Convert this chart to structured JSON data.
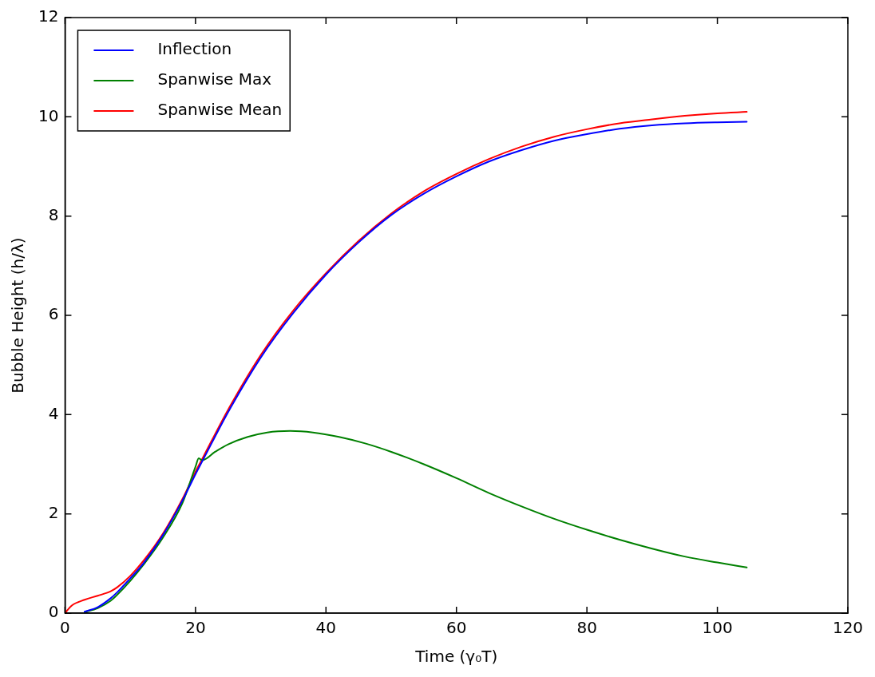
{
  "chart_data": {
    "type": "line",
    "xlabel": "Time (γ₀T)",
    "ylabel": "Bubble Height (h/λ)",
    "xlim": [
      0,
      120
    ],
    "ylim": [
      0,
      12
    ],
    "xticks": [
      0,
      20,
      40,
      60,
      80,
      100,
      120
    ],
    "yticks": [
      0,
      2,
      4,
      6,
      8,
      10,
      12
    ],
    "grid": false,
    "legend": "top left",
    "marker": "none",
    "line_style": "solid",
    "series": [
      {
        "name": "Inflection",
        "color": "#0000ff",
        "x": [
          3,
          5,
          7,
          8,
          10,
          12,
          15,
          18,
          20,
          21,
          25,
          30,
          35,
          40,
          45,
          50,
          55,
          60,
          65,
          70,
          75,
          80,
          85,
          90,
          95,
          100,
          104.5
        ],
        "values": [
          0.03,
          0.12,
          0.3,
          0.42,
          0.7,
          1.0,
          1.57,
          2.27,
          2.8,
          3.05,
          4.05,
          5.15,
          6.05,
          6.82,
          7.47,
          8.02,
          8.45,
          8.8,
          9.1,
          9.33,
          9.52,
          9.65,
          9.76,
          9.83,
          9.87,
          9.89,
          9.9
        ]
      },
      {
        "name": "Spanwise Max",
        "color": "#008000",
        "x": [
          3,
          5,
          7,
          8,
          10,
          12,
          15,
          18,
          20,
          20.5,
          21,
          23,
          25,
          28,
          31,
          34.5,
          38,
          42,
          46,
          50,
          55,
          60,
          65,
          70,
          75,
          80,
          85,
          90,
          95,
          100,
          104.5
        ],
        "values": [
          0.02,
          0.1,
          0.25,
          0.37,
          0.65,
          0.97,
          1.52,
          2.22,
          2.95,
          3.12,
          3.08,
          3.25,
          3.4,
          3.55,
          3.64,
          3.67,
          3.64,
          3.55,
          3.42,
          3.25,
          3.0,
          2.72,
          2.42,
          2.15,
          1.9,
          1.68,
          1.48,
          1.3,
          1.14,
          1.02,
          0.92
        ]
      },
      {
        "name": "Spanwise Mean",
        "color": "#ff0000",
        "x": [
          0,
          1,
          3,
          5,
          7,
          8,
          10,
          12,
          15,
          18,
          20,
          21,
          25,
          30,
          35,
          40,
          45,
          50,
          55,
          60,
          65,
          70,
          75,
          80,
          85,
          90,
          95,
          100,
          104.5
        ],
        "values": [
          0,
          0.15,
          0.27,
          0.35,
          0.44,
          0.52,
          0.75,
          1.05,
          1.6,
          2.3,
          2.85,
          3.1,
          4.1,
          5.2,
          6.1,
          6.85,
          7.5,
          8.05,
          8.5,
          8.85,
          9.15,
          9.4,
          9.6,
          9.75,
          9.87,
          9.95,
          10.02,
          10.07,
          10.1
        ]
      }
    ]
  }
}
